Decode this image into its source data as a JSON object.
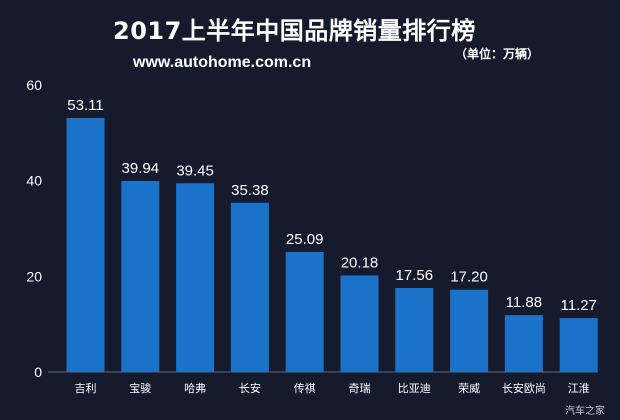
{
  "header": {
    "title": "2017上半年中国品牌销量排行榜",
    "unit": "（单位：万辆）",
    "website": "www.autohome.com.cn"
  },
  "watermark": "汽车之家",
  "colors": {
    "background": "#151b2d",
    "bar": "#1b73c9",
    "text": "#ffffff",
    "axis": "#5a6478"
  },
  "chart_data": {
    "type": "bar",
    "categories": [
      "吉利",
      "宝骏",
      "哈弗",
      "长安",
      "传祺",
      "奇瑞",
      "比亚迪",
      "荣威",
      "长安欧尚",
      "江淮"
    ],
    "values": [
      53.11,
      39.94,
      39.45,
      35.38,
      25.09,
      20.18,
      17.56,
      17.2,
      11.88,
      11.27
    ],
    "data_labels": [
      "53.11",
      "39.94",
      "39.45",
      "35.38",
      "25.09",
      "20.18",
      "17.56",
      "17.20",
      "11.88",
      "11.27"
    ],
    "yticks": [
      "0",
      "20",
      "40",
      "60"
    ],
    "ylim": [
      0,
      60
    ],
    "title": "2017上半年中国品牌销量排行榜",
    "ylabel": "",
    "xlabel": "",
    "grid": false
  }
}
